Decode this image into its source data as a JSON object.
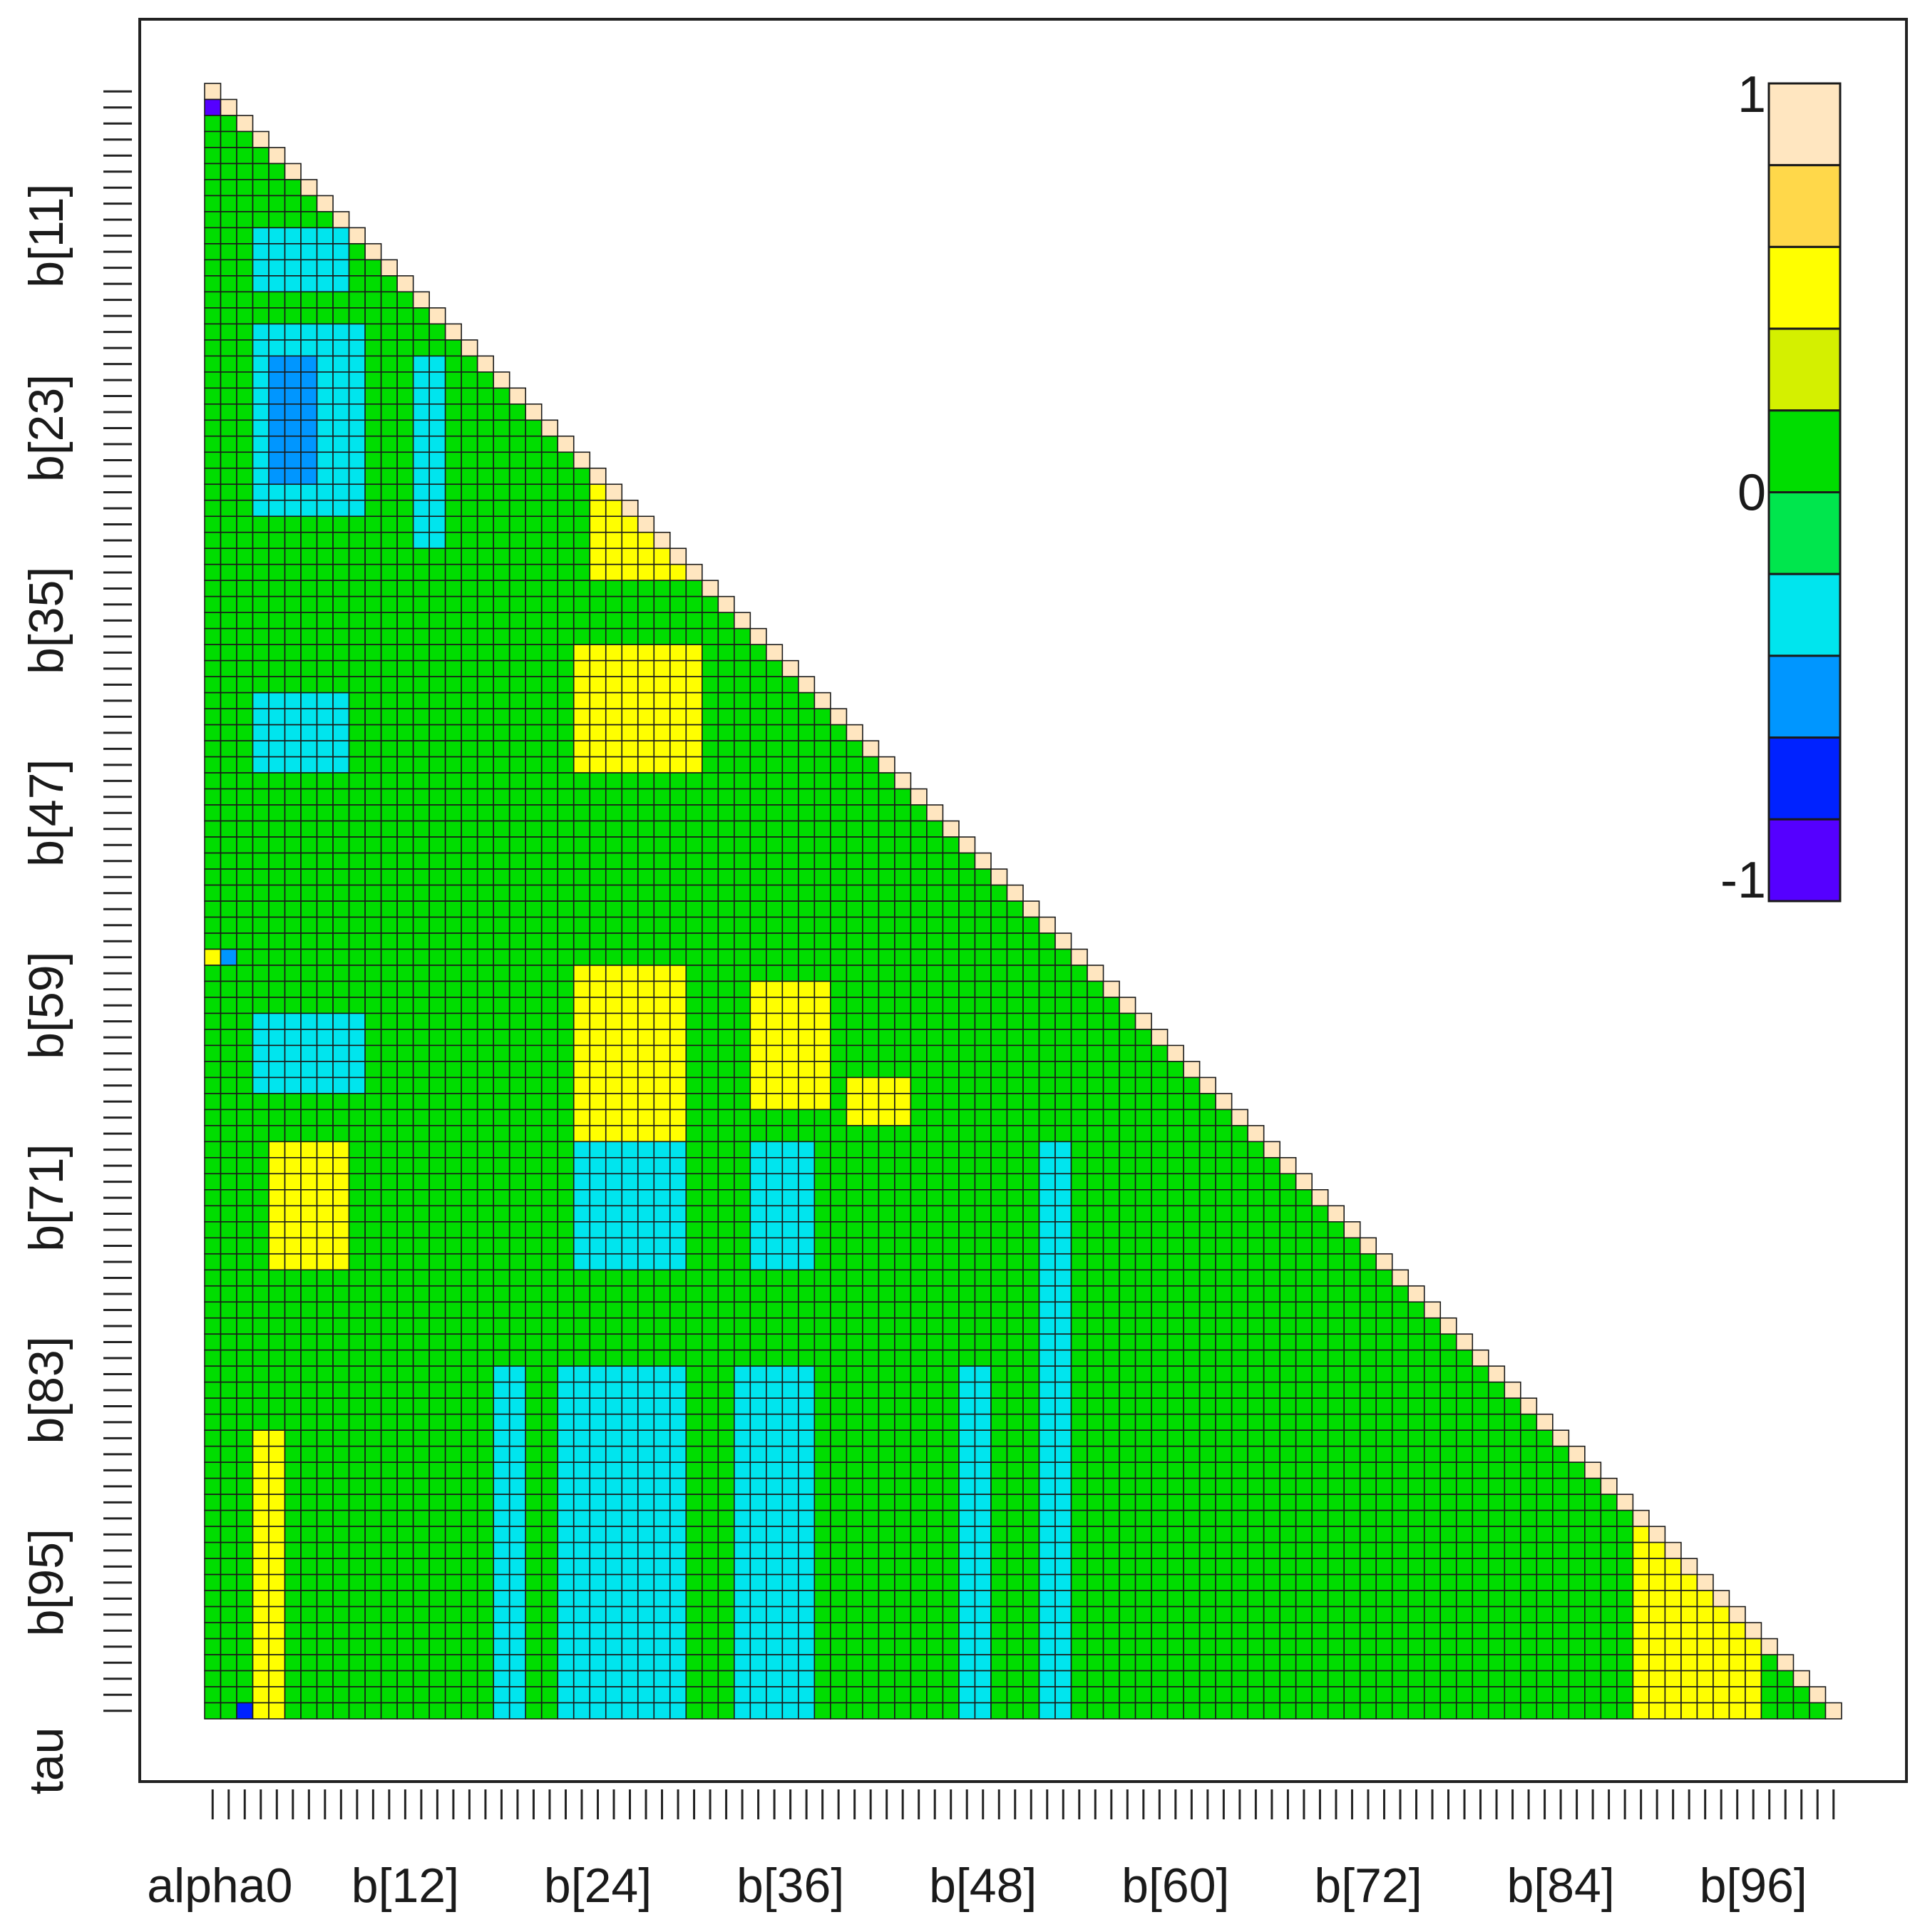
{
  "chart_data": {
    "type": "heatmap",
    "title": "",
    "xlabel": "",
    "ylabel": "",
    "variables_count": 102,
    "x_tick_labels": [
      "alpha0",
      "b[12]",
      "b[24]",
      "b[36]",
      "b[48]",
      "b[60]",
      "b[72]",
      "b[84]",
      "b[96]"
    ],
    "y_tick_labels": [
      "b[11]",
      "b[23]",
      "b[35]",
      "b[47]",
      "b[59]",
      "b[71]",
      "b[83]",
      "b[95]",
      "tau"
    ],
    "value_range": [
      -1,
      1
    ],
    "legend": {
      "placement": "top-right",
      "labels": [
        "1",
        "0",
        "-1"
      ],
      "bins": [
        {
          "from": 0.8,
          "to": 1.0,
          "color": "#ffe6c0"
        },
        {
          "from": 0.6,
          "to": 0.8,
          "color": "#ffd84a"
        },
        {
          "from": 0.4,
          "to": 0.6,
          "color": "#ffff00"
        },
        {
          "from": 0.2,
          "to": 0.4,
          "color": "#d4f000"
        },
        {
          "from": 0.0,
          "to": 0.2,
          "color": "#00dd00"
        },
        {
          "from": -0.2,
          "to": 0.0,
          "color": "#00e64d"
        },
        {
          "from": -0.4,
          "to": -0.2,
          "color": "#00e5ee"
        },
        {
          "from": -0.6,
          "to": -0.4,
          "color": "#0096ff"
        },
        {
          "from": -0.8,
          "to": -0.6,
          "color": "#0022ff"
        },
        {
          "from": -1.0,
          "to": -0.8,
          "color": "#5500ff"
        }
      ]
    },
    "diagonal_value": 1.0,
    "background_value": 0.05,
    "regions": [
      {
        "rows": [
          15,
          26
        ],
        "cols": [
          3,
          9
        ],
        "value": -0.3
      },
      {
        "rows": [
          17,
          24
        ],
        "cols": [
          4,
          6
        ],
        "value": -0.55
      },
      {
        "rows": [
          9,
          12
        ],
        "cols": [
          3,
          8
        ],
        "value": -0.3
      },
      {
        "rows": [
          38,
          42
        ],
        "cols": [
          3,
          8
        ],
        "value": -0.3
      },
      {
        "rows": [
          58,
          62
        ],
        "cols": [
          3,
          9
        ],
        "value": -0.3
      },
      {
        "rows": [
          17,
          28
        ],
        "cols": [
          13,
          14
        ],
        "value": -0.3
      },
      {
        "rows": [
          24,
          30
        ],
        "cols": [
          24,
          30
        ],
        "value": 0.45
      },
      {
        "rows": [
          35,
          42
        ],
        "cols": [
          23,
          30
        ],
        "value": 0.45
      },
      {
        "rows": [
          55,
          65
        ],
        "cols": [
          23,
          29
        ],
        "value": 0.45
      },
      {
        "rows": [
          56,
          63
        ],
        "cols": [
          34,
          38
        ],
        "value": 0.45
      },
      {
        "rows": [
          62,
          64
        ],
        "cols": [
          40,
          43
        ],
        "value": 0.45
      },
      {
        "rows": [
          66,
          73
        ],
        "cols": [
          4,
          8
        ],
        "value": 0.45
      },
      {
        "rows": [
          66,
          73
        ],
        "cols": [
          23,
          29
        ],
        "value": -0.3
      },
      {
        "rows": [
          66,
          73
        ],
        "cols": [
          34,
          37
        ],
        "value": -0.3
      },
      {
        "rows": [
          80,
          101
        ],
        "cols": [
          22,
          29
        ],
        "value": -0.3
      },
      {
        "rows": [
          80,
          101
        ],
        "cols": [
          33,
          37
        ],
        "value": -0.3
      },
      {
        "rows": [
          80,
          101
        ],
        "cols": [
          18,
          19
        ],
        "value": -0.3
      },
      {
        "rows": [
          80,
          101
        ],
        "cols": [
          47,
          48
        ],
        "value": -0.3
      },
      {
        "rows": [
          66,
          101
        ],
        "cols": [
          52,
          53
        ],
        "value": -0.3
      },
      {
        "rows": [
          84,
          101
        ],
        "cols": [
          3,
          4
        ],
        "value": 0.45
      },
      {
        "rows": [
          84,
          101
        ],
        "cols": [
          89,
          96
        ],
        "value": 0.45
      }
    ],
    "points": [
      {
        "row": 1,
        "col": 0,
        "value": -0.9
      },
      {
        "row": 101,
        "col": 2,
        "value": -0.7
      },
      {
        "row": 54,
        "col": 0,
        "value": 0.45
      },
      {
        "row": 54,
        "col": 1,
        "value": -0.55
      }
    ]
  }
}
